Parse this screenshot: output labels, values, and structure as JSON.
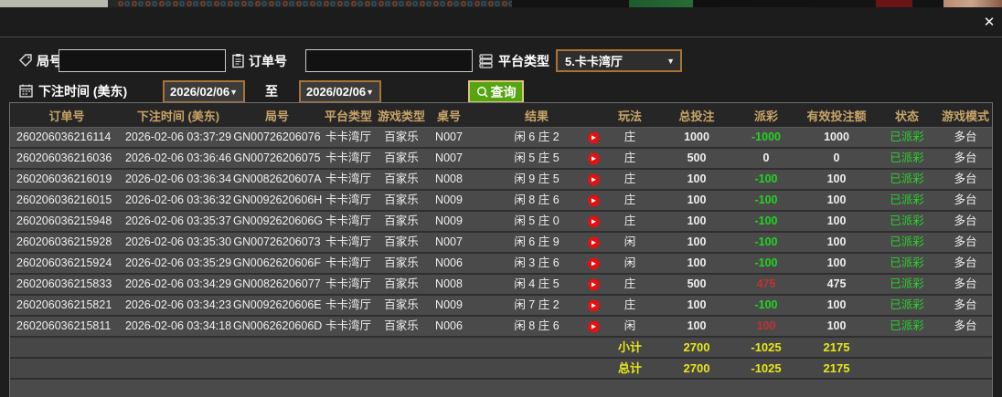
{
  "window": {
    "close_label": "✕"
  },
  "filters": {
    "round": {
      "label": "局号",
      "value": "",
      "icon": "tag-icon"
    },
    "order": {
      "label": "订单号",
      "value": "",
      "icon": "clipboard-icon"
    },
    "platform": {
      "label": "平台类型",
      "value": "5.卡卡湾厅",
      "icon": "list-icon",
      "arrow": "▼"
    },
    "bet_time": {
      "label": "下注时间 (美东)",
      "icon": "calendar-icon",
      "from": "2026/02/06",
      "to_separator": "至",
      "to": "2026/02/06",
      "arrow": "▼"
    },
    "query_button": {
      "label": "查询",
      "icon": "search-icon"
    }
  },
  "colors": {
    "header_gold": "#c8a468",
    "summary_yellow": "#e8e818",
    "win_red": "#c03333",
    "loss_green": "#22d422",
    "status_green": "#2ad42a",
    "button_green": "#55a410",
    "border_orange": "#a97433"
  },
  "table": {
    "columns": [
      "订单号",
      "下注时间 (美东)",
      "局号",
      "平台类型",
      "游戏类型",
      "桌号",
      "结果",
      "玩法",
      "总投注",
      "派彩",
      "有效投注额",
      "状态",
      "游戏模式"
    ],
    "play_icon_glyph": "▶",
    "rows": [
      {
        "order_no": "260206036216114",
        "bet_time": "2026-02-06 03:37:29",
        "round_no": "GN00726206076",
        "platform": "卡卡湾厅",
        "game_type": "百家乐",
        "table_no": "N007",
        "result": "闲 6 庄 2",
        "play_type": "庄",
        "total_bet": "1000",
        "payout": "-1000",
        "payout_color": "green",
        "valid_bet": "1000",
        "status": "已派彩",
        "game_mode": "多台"
      },
      {
        "order_no": "260206036216036",
        "bet_time": "2026-02-06 03:36:46",
        "round_no": "GN00726206075",
        "platform": "卡卡湾厅",
        "game_type": "百家乐",
        "table_no": "N007",
        "result": "闲 5 庄 5",
        "play_type": "庄",
        "total_bet": "500",
        "payout": "0",
        "payout_color": "white",
        "valid_bet": "0",
        "status": "已派彩",
        "game_mode": "多台"
      },
      {
        "order_no": "260206036216019",
        "bet_time": "2026-02-06 03:36:34",
        "round_no": "GN0082620607A",
        "platform": "卡卡湾厅",
        "game_type": "百家乐",
        "table_no": "N008",
        "result": "闲 9 庄 5",
        "play_type": "庄",
        "total_bet": "100",
        "payout": "-100",
        "payout_color": "green",
        "valid_bet": "100",
        "status": "已派彩",
        "game_mode": "多台"
      },
      {
        "order_no": "260206036216015",
        "bet_time": "2026-02-06 03:36:32",
        "round_no": "GN0092620606H",
        "platform": "卡卡湾厅",
        "game_type": "百家乐",
        "table_no": "N009",
        "result": "闲 8 庄 6",
        "play_type": "庄",
        "total_bet": "100",
        "payout": "-100",
        "payout_color": "green",
        "valid_bet": "100",
        "status": "已派彩",
        "game_mode": "多台"
      },
      {
        "order_no": "260206036215948",
        "bet_time": "2026-02-06 03:35:37",
        "round_no": "GN0092620606G",
        "platform": "卡卡湾厅",
        "game_type": "百家乐",
        "table_no": "N009",
        "result": "闲 5 庄 0",
        "play_type": "庄",
        "total_bet": "100",
        "payout": "-100",
        "payout_color": "green",
        "valid_bet": "100",
        "status": "已派彩",
        "game_mode": "多台"
      },
      {
        "order_no": "260206036215928",
        "bet_time": "2026-02-06 03:35:30",
        "round_no": "GN00726206073",
        "platform": "卡卡湾厅",
        "game_type": "百家乐",
        "table_no": "N007",
        "result": "闲 6 庄 9",
        "play_type": "闲",
        "total_bet": "100",
        "payout": "-100",
        "payout_color": "green",
        "valid_bet": "100",
        "status": "已派彩",
        "game_mode": "多台"
      },
      {
        "order_no": "260206036215924",
        "bet_time": "2026-02-06 03:35:29",
        "round_no": "GN0062620606F",
        "platform": "卡卡湾厅",
        "game_type": "百家乐",
        "table_no": "N006",
        "result": "闲 3 庄 6",
        "play_type": "闲",
        "total_bet": "100",
        "payout": "-100",
        "payout_color": "green",
        "valid_bet": "100",
        "status": "已派彩",
        "game_mode": "多台"
      },
      {
        "order_no": "260206036215833",
        "bet_time": "2026-02-06 03:34:29",
        "round_no": "GN00826206077",
        "platform": "卡卡湾厅",
        "game_type": "百家乐",
        "table_no": "N008",
        "result": "闲 4 庄 5",
        "play_type": "庄",
        "total_bet": "500",
        "payout": "475",
        "payout_color": "red",
        "valid_bet": "475",
        "status": "已派彩",
        "game_mode": "多台"
      },
      {
        "order_no": "260206036215821",
        "bet_time": "2026-02-06 03:34:23",
        "round_no": "GN0092620606E",
        "platform": "卡卡湾厅",
        "game_type": "百家乐",
        "table_no": "N009",
        "result": "闲 7 庄 2",
        "play_type": "庄",
        "total_bet": "100",
        "payout": "-100",
        "payout_color": "green",
        "valid_bet": "100",
        "status": "已派彩",
        "game_mode": "多台"
      },
      {
        "order_no": "260206036215811",
        "bet_time": "2026-02-06 03:34:18",
        "round_no": "GN0062620606D",
        "platform": "卡卡湾厅",
        "game_type": "百家乐",
        "table_no": "N006",
        "result": "闲 8 庄 6",
        "play_type": "闲",
        "total_bet": "100",
        "payout": "100",
        "payout_color": "red",
        "valid_bet": "100",
        "status": "已派彩",
        "game_mode": "多台"
      }
    ],
    "summary": [
      {
        "label": "小计",
        "total_bet": "2700",
        "payout": "-1025",
        "valid_bet": "2175"
      },
      {
        "label": "总计",
        "total_bet": "2700",
        "payout": "-1025",
        "valid_bet": "2175"
      }
    ]
  }
}
